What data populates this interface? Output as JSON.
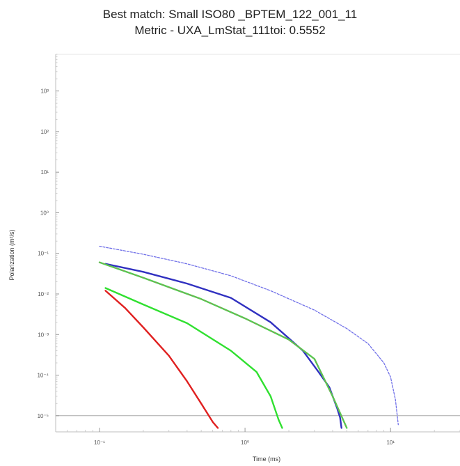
{
  "chart_data": {
    "type": "line",
    "title": "Best match: Small ISO80 _BPTEM_122_001_11",
    "subtitle": "Metric - UXA_LmStat_111toi: 0.5552",
    "xlabel": "Time (ms)",
    "ylabel": "Polarization (m²/s)",
    "x_scale": "log",
    "y_scale": "log",
    "xlim": [
      0.05,
      30
    ],
    "ylim": [
      4e-06,
      8000
    ],
    "x_ticks": [
      0.1,
      1,
      10
    ],
    "x_tick_labels": [
      "10⁻¹",
      "10⁰",
      "10¹"
    ],
    "y_ticks": [
      1e-05,
      0.0001,
      0.001,
      0.01,
      0.1,
      1,
      10,
      100,
      1000
    ],
    "y_tick_labels": [
      "10⁻⁵",
      "10⁻⁴",
      "10⁻³",
      "10⁻²",
      "10⁻¹",
      "10⁰",
      "10¹",
      "10²",
      "10³"
    ],
    "reference_line_y": 1e-05,
    "grid": false,
    "legend": "none",
    "series": [
      {
        "color": "#7070e8",
        "style": "dashed",
        "x": [
          0.1,
          0.2,
          0.4,
          0.8,
          1.5,
          3,
          5,
          7,
          9,
          10,
          10.8,
          11.3
        ],
        "y": [
          0.15,
          0.095,
          0.055,
          0.028,
          0.012,
          0.004,
          0.0014,
          0.0006,
          0.0002,
          9e-05,
          2.5e-05,
          6e-06
        ]
      },
      {
        "color": "#3030c0",
        "style": "solid",
        "x": [
          0.11,
          0.2,
          0.4,
          0.8,
          1.5,
          2.5,
          3.2,
          3.8,
          4.3,
          4.5,
          4.6
        ],
        "y": [
          0.055,
          0.035,
          0.018,
          0.008,
          0.002,
          0.0004,
          0.00012,
          5e-05,
          1.5e-05,
          9e-06,
          5e-06
        ]
      },
      {
        "color": "#50d050",
        "style": "solid",
        "accent_color": "#c06060",
        "x": [
          0.1,
          0.2,
          0.5,
          1,
          2,
          3,
          4,
          5
        ],
        "y": [
          0.06,
          0.025,
          0.0075,
          0.0025,
          0.00075,
          0.00025,
          3e-05,
          5e-06
        ]
      },
      {
        "color": "#30e030",
        "style": "solid",
        "x": [
          0.11,
          0.2,
          0.4,
          0.8,
          1.2,
          1.5,
          1.7,
          1.8
        ],
        "y": [
          0.014,
          0.0055,
          0.0019,
          0.0004,
          0.00012,
          3e-05,
          8e-06,
          5e-06
        ]
      },
      {
        "color": "#e02020",
        "style": "solid",
        "x": [
          0.11,
          0.15,
          0.2,
          0.3,
          0.4,
          0.5,
          0.6,
          0.65
        ],
        "y": [
          0.012,
          0.0045,
          0.0015,
          0.0003,
          7e-05,
          2e-05,
          7e-06,
          5e-06
        ]
      }
    ]
  }
}
